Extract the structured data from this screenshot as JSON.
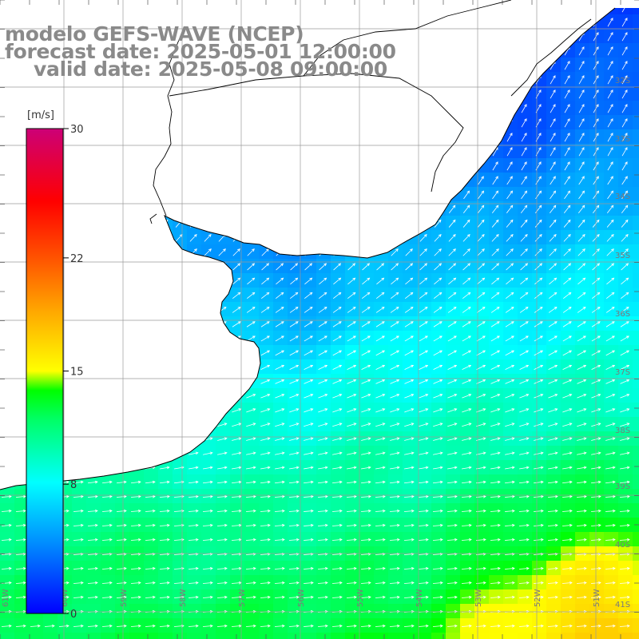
{
  "title": {
    "model": "modelo GEFS-WAVE (NCEP)",
    "forecast": "forecast date: 2025-05-01 12:00:00",
    "valid": "valid date: 2025-05-08 09:00:00"
  },
  "colorbar": {
    "unit": "[m/s]",
    "ticks": [
      "30",
      "22",
      "15",
      "8",
      "0"
    ],
    "range": [
      0,
      30
    ],
    "colors": [
      "#0000ff",
      "#0088ff",
      "#00ffff",
      "#00ff00",
      "#ffff00",
      "#ff6600",
      "#ff0000",
      "#cc0077"
    ]
  },
  "grid": {
    "lat_labels": [
      "32S",
      "33S",
      "34S",
      "35S",
      "36S",
      "37S",
      "38S",
      "39S",
      "40S",
      "41S"
    ],
    "lon_labels": [
      "61W",
      "60W",
      "59W",
      "58W",
      "57W",
      "56W",
      "55W",
      "54W",
      "53W",
      "52W",
      "51W"
    ]
  },
  "field": {
    "variable": "wind speed",
    "arrow_color": "#ffffff",
    "land_color": "#ffffff",
    "coast_color": "#000000",
    "grid_color": "#9a9a9a"
  }
}
